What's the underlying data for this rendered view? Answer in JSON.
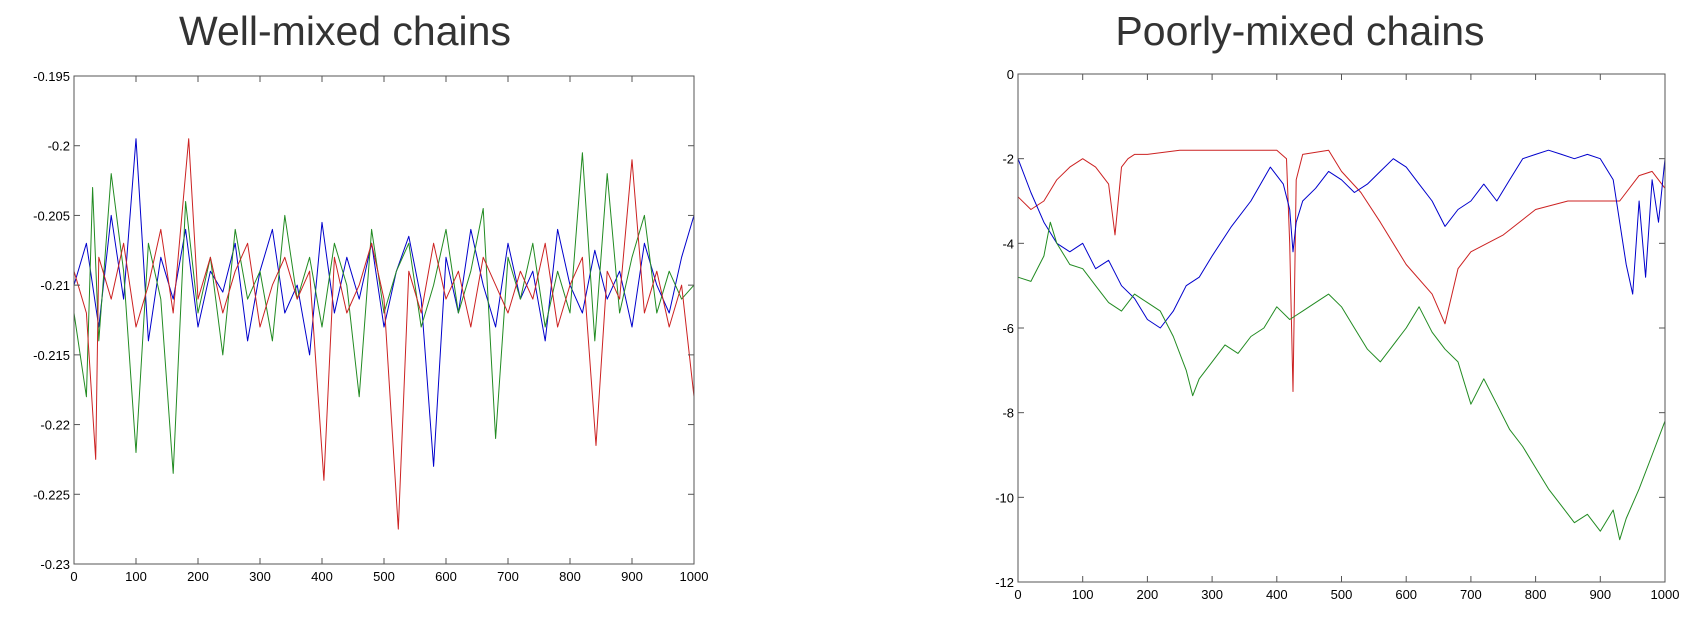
{
  "chart_data": [
    {
      "type": "line",
      "title": "Well-mixed chains",
      "xlabel": "",
      "ylabel": "",
      "xlim": [
        0,
        1000
      ],
      "ylim": [
        -0.23,
        -0.195
      ],
      "xticks": [
        "0",
        "100",
        "200",
        "300",
        "400",
        "500",
        "600",
        "700",
        "800",
        "900",
        "1000"
      ],
      "yticks": [
        "-0.195",
        "-0.2",
        "-0.205",
        "-0.21",
        "-0.215",
        "-0.22",
        "-0.225",
        "-0.23"
      ],
      "grid": false,
      "series_colors": [
        "#0000cc",
        "#228b22",
        "#cc2222"
      ],
      "series": [
        {
          "color": "#0000cc",
          "x": [
            0,
            20,
            40,
            60,
            80,
            100,
            120,
            140,
            160,
            180,
            200,
            220,
            240,
            260,
            280,
            300,
            320,
            340,
            360,
            380,
            400,
            420,
            440,
            460,
            480,
            500,
            520,
            540,
            560,
            580,
            600,
            620,
            640,
            660,
            680,
            700,
            720,
            740,
            760,
            780,
            800,
            820,
            840,
            860,
            880,
            900,
            920,
            940,
            960,
            980,
            1000
          ],
          "values": [
            -0.21,
            -0.207,
            -0.213,
            -0.205,
            -0.211,
            -0.1995,
            -0.214,
            -0.208,
            -0.211,
            -0.206,
            -0.213,
            -0.209,
            -0.2105,
            -0.207,
            -0.214,
            -0.209,
            -0.206,
            -0.212,
            -0.21,
            -0.215,
            -0.2055,
            -0.212,
            -0.208,
            -0.211,
            -0.207,
            -0.213,
            -0.209,
            -0.2065,
            -0.211,
            -0.223,
            -0.208,
            -0.212,
            -0.206,
            -0.21,
            -0.213,
            -0.207,
            -0.211,
            -0.209,
            -0.214,
            -0.206,
            -0.21,
            -0.212,
            -0.2075,
            -0.211,
            -0.209,
            -0.213,
            -0.207,
            -0.21,
            -0.212,
            -0.208,
            -0.205
          ]
        },
        {
          "color": "#228b22",
          "x": [
            0,
            20,
            30,
            40,
            60,
            80,
            100,
            120,
            140,
            160,
            180,
            200,
            220,
            240,
            260,
            280,
            300,
            320,
            340,
            360,
            380,
            400,
            420,
            440,
            460,
            480,
            500,
            520,
            540,
            560,
            580,
            600,
            620,
            640,
            660,
            680,
            700,
            720,
            740,
            760,
            780,
            800,
            820,
            840,
            860,
            880,
            900,
            920,
            940,
            960,
            980,
            1000
          ],
          "values": [
            -0.212,
            -0.218,
            -0.203,
            -0.214,
            -0.202,
            -0.209,
            -0.222,
            -0.207,
            -0.211,
            -0.2235,
            -0.204,
            -0.212,
            -0.208,
            -0.215,
            -0.206,
            -0.211,
            -0.209,
            -0.214,
            -0.205,
            -0.211,
            -0.208,
            -0.213,
            -0.207,
            -0.21,
            -0.218,
            -0.206,
            -0.212,
            -0.209,
            -0.207,
            -0.213,
            -0.21,
            -0.206,
            -0.212,
            -0.209,
            -0.2045,
            -0.221,
            -0.208,
            -0.211,
            -0.207,
            -0.213,
            -0.209,
            -0.212,
            -0.2005,
            -0.214,
            -0.202,
            -0.212,
            -0.208,
            -0.205,
            -0.212,
            -0.209,
            -0.211,
            -0.21
          ]
        },
        {
          "color": "#cc2222",
          "x": [
            0,
            20,
            35,
            40,
            60,
            80,
            100,
            120,
            140,
            160,
            185,
            200,
            220,
            240,
            260,
            280,
            300,
            320,
            340,
            360,
            380,
            403,
            420,
            440,
            460,
            480,
            500,
            523,
            540,
            560,
            580,
            600,
            620,
            640,
            660,
            680,
            700,
            720,
            740,
            760,
            780,
            800,
            820,
            842,
            860,
            880,
            900,
            920,
            940,
            960,
            980,
            1000
          ],
          "values": [
            -0.209,
            -0.212,
            -0.2225,
            -0.208,
            -0.211,
            -0.207,
            -0.213,
            -0.21,
            -0.206,
            -0.212,
            -0.1995,
            -0.211,
            -0.208,
            -0.212,
            -0.209,
            -0.207,
            -0.213,
            -0.21,
            -0.208,
            -0.211,
            -0.209,
            -0.224,
            -0.208,
            -0.212,
            -0.21,
            -0.207,
            -0.211,
            -0.2275,
            -0.209,
            -0.212,
            -0.207,
            -0.211,
            -0.209,
            -0.213,
            -0.208,
            -0.21,
            -0.212,
            -0.209,
            -0.211,
            -0.207,
            -0.213,
            -0.21,
            -0.208,
            -0.2215,
            -0.209,
            -0.211,
            -0.201,
            -0.212,
            -0.209,
            -0.213,
            -0.21,
            -0.218
          ]
        }
      ]
    },
    {
      "type": "line",
      "title": "Poorly-mixed chains",
      "xlabel": "",
      "ylabel": "",
      "xlim": [
        0,
        1000
      ],
      "ylim": [
        -12,
        0
      ],
      "xticks": [
        "0",
        "100",
        "200",
        "300",
        "400",
        "500",
        "600",
        "700",
        "800",
        "900",
        "1000"
      ],
      "yticks": [
        "0",
        "-2",
        "-4",
        "-6",
        "-8",
        "-10",
        "-12"
      ],
      "grid": false,
      "series_colors": [
        "#cc2222",
        "#0000cc",
        "#228b22"
      ],
      "series": [
        {
          "color": "#cc2222",
          "x": [
            0,
            20,
            40,
            60,
            80,
            100,
            120,
            140,
            150,
            160,
            170,
            180,
            200,
            250,
            300,
            350,
            400,
            415,
            420,
            425,
            430,
            440,
            480,
            500,
            530,
            560,
            600,
            640,
            660,
            680,
            700,
            750,
            800,
            850,
            900,
            930,
            960,
            980,
            1000
          ],
          "values": [
            -2.9,
            -3.2,
            -3.0,
            -2.5,
            -2.2,
            -2.0,
            -2.2,
            -2.6,
            -3.8,
            -2.2,
            -2.0,
            -1.9,
            -1.9,
            -1.8,
            -1.8,
            -1.8,
            -1.8,
            -2.0,
            -4.0,
            -7.5,
            -2.5,
            -1.9,
            -1.8,
            -2.3,
            -2.8,
            -3.5,
            -4.5,
            -5.2,
            -5.9,
            -4.6,
            -4.2,
            -3.8,
            -3.2,
            -3.0,
            -3.0,
            -3.0,
            -2.4,
            -2.3,
            -2.7
          ]
        },
        {
          "color": "#0000cc",
          "x": [
            0,
            20,
            40,
            60,
            80,
            100,
            120,
            140,
            160,
            180,
            200,
            220,
            240,
            260,
            280,
            300,
            330,
            360,
            390,
            410,
            420,
            425,
            430,
            440,
            460,
            480,
            500,
            520,
            540,
            560,
            580,
            600,
            620,
            640,
            660,
            680,
            700,
            720,
            740,
            760,
            780,
            800,
            820,
            840,
            860,
            880,
            900,
            920,
            940,
            950,
            960,
            970,
            980,
            990,
            1000
          ],
          "values": [
            -2.0,
            -2.8,
            -3.5,
            -4.0,
            -4.2,
            -4.0,
            -4.6,
            -4.4,
            -5.0,
            -5.3,
            -5.8,
            -6.0,
            -5.6,
            -5.0,
            -4.8,
            -4.3,
            -3.6,
            -3.0,
            -2.2,
            -2.6,
            -3.2,
            -4.2,
            -3.5,
            -3.0,
            -2.7,
            -2.3,
            -2.5,
            -2.8,
            -2.6,
            -2.3,
            -2.0,
            -2.2,
            -2.6,
            -3.0,
            -3.6,
            -3.2,
            -3.0,
            -2.6,
            -3.0,
            -2.5,
            -2.0,
            -1.9,
            -1.8,
            -1.9,
            -2.0,
            -1.9,
            -2.0,
            -2.5,
            -4.5,
            -5.2,
            -3.0,
            -4.8,
            -2.5,
            -3.5,
            -2.0
          ]
        },
        {
          "color": "#228b22",
          "x": [
            0,
            20,
            40,
            50,
            60,
            80,
            100,
            120,
            140,
            160,
            180,
            200,
            220,
            240,
            260,
            270,
            280,
            300,
            320,
            340,
            360,
            380,
            400,
            420,
            440,
            460,
            480,
            500,
            520,
            540,
            560,
            580,
            600,
            620,
            640,
            660,
            680,
            700,
            720,
            740,
            760,
            780,
            800,
            820,
            840,
            860,
            880,
            900,
            920,
            930,
            940,
            960,
            980,
            1000
          ],
          "values": [
            -4.8,
            -4.9,
            -4.3,
            -3.5,
            -4.0,
            -4.5,
            -4.6,
            -5.0,
            -5.4,
            -5.6,
            -5.2,
            -5.4,
            -5.6,
            -6.2,
            -7.0,
            -7.6,
            -7.2,
            -6.8,
            -6.4,
            -6.6,
            -6.2,
            -6.0,
            -5.5,
            -5.8,
            -5.6,
            -5.4,
            -5.2,
            -5.5,
            -6.0,
            -6.5,
            -6.8,
            -6.4,
            -6.0,
            -5.5,
            -6.1,
            -6.5,
            -6.8,
            -7.8,
            -7.2,
            -7.8,
            -8.4,
            -8.8,
            -9.3,
            -9.8,
            -10.2,
            -10.6,
            -10.4,
            -10.8,
            -10.3,
            -11.0,
            -10.5,
            -9.8,
            -9.0,
            -8.2
          ]
        }
      ]
    }
  ]
}
